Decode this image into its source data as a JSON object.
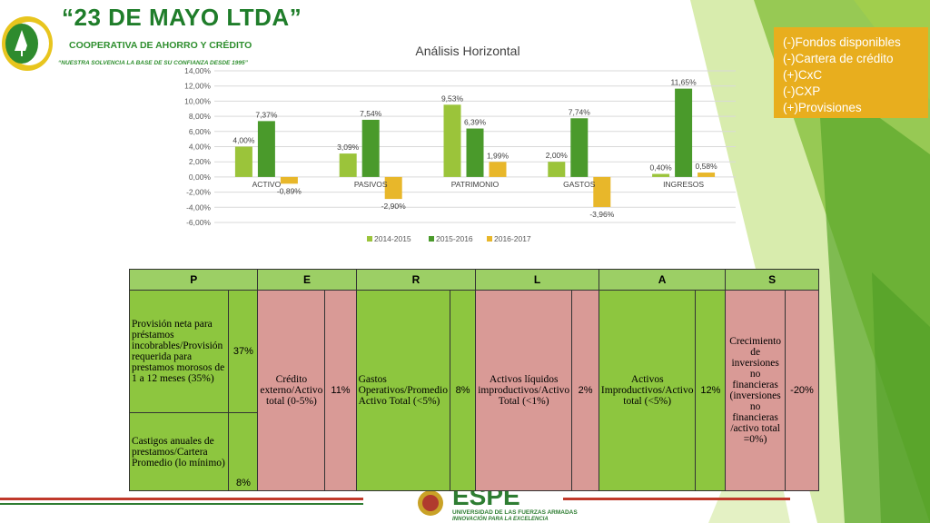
{
  "brand": {
    "title": "“23 DE MAYO LTDA”",
    "subtitle": "COOPERATIVA DE AHORRO Y CRÉDITO",
    "slogan": "“NUESTRA SOLVENCIA LA BASE DE SU CONFIANZA DESDE 1995”"
  },
  "colors": {
    "series1": "#9bc43a",
    "series2": "#4a9a2b",
    "series3": "#e8b72a",
    "info_box": "#e8ae1e",
    "green_cell": "#8dc63f",
    "pink_cell": "#d99a96"
  },
  "chart_data": {
    "type": "bar",
    "title": "Análisis Horizontal",
    "categories": [
      "ACTIVO",
      "PASIVOS",
      "PATRIMONIO",
      "GASTOS",
      "INGRESOS"
    ],
    "series": [
      {
        "name": "2014-2015",
        "values": [
          4.0,
          3.09,
          9.53,
          2.0,
          0.4
        ],
        "labels": [
          "4,00%",
          "3,09%",
          "9,53%",
          "2,00%",
          "0,40%"
        ]
      },
      {
        "name": "2015-2016",
        "values": [
          7.37,
          7.54,
          6.39,
          7.74,
          11.65
        ],
        "labels": [
          "7,37%",
          "7,54%",
          "6,39%",
          "7,74%",
          "11,65%"
        ]
      },
      {
        "name": "2016-2017",
        "values": [
          -0.89,
          -2.9,
          1.99,
          -3.96,
          0.58
        ],
        "labels": [
          "-0,89%",
          "-2,90%",
          "1,99%",
          "-3,96%",
          "0,58%"
        ]
      }
    ],
    "yticks": [
      "14,00%",
      "12,00%",
      "10,00%",
      "8,00%",
      "6,00%",
      "4,00%",
      "2,00%",
      "0,00%",
      "-2,00%",
      "-4,00%",
      "-6,00%"
    ],
    "ylim": [
      -6,
      14
    ],
    "grid": true,
    "legend": "bottom"
  },
  "info_box": {
    "items": [
      "(-)Fondos disponibles",
      "(-)Cartera de crédito",
      "(+)CxC",
      "(-)CXP",
      "(+)Provisiones"
    ]
  },
  "table": {
    "headers": [
      "P",
      "E",
      "R",
      "L",
      "A",
      "S"
    ],
    "p1_label": "Provisión neta para préstamos incobrables/Provisión requerida para prestamos morosos de 1 a 12 meses (35%)",
    "p1_value": "37%",
    "p2_label": "Castigos anuales de prestamos/Cartera Promedio (lo mínimo)",
    "p2_value": "8%",
    "e_label": "Crédito externo/Activo total  (0-5%)",
    "e_value": "11%",
    "r_label": "Gastos Operativos/Promedio Activo Total (<5%)",
    "r_value": "8%",
    "l_label": "Activos líquidos improductivos/Activo Total (<1%)",
    "l_value": "2%",
    "a_label": "Activos Improductivos/Activo total (<5%)",
    "a_value": "12%",
    "s_label": "Crecimiento de inversiones no financieras (inversiones no financieras /activo total =0%)",
    "s_value": "-20%"
  },
  "footer": {
    "logo_text": "ESPE",
    "university": "UNIVERSIDAD DE LAS FUERZAS ARMADAS",
    "motto": "INNOVACIÓN PARA LA EXCELENCIA"
  }
}
